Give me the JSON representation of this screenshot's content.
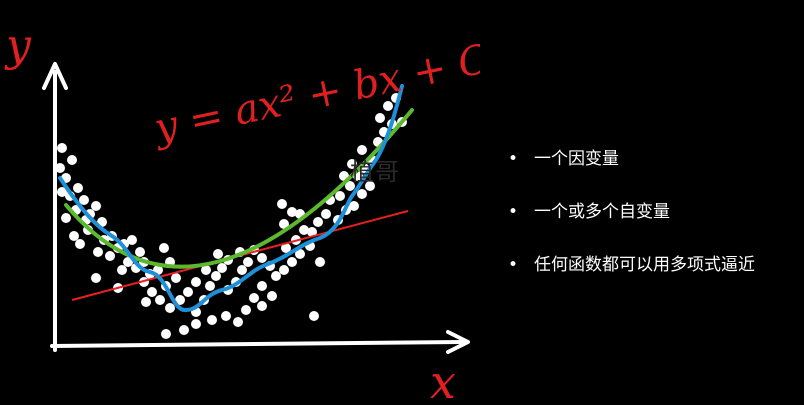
{
  "diagram": {
    "y_axis_label": "y",
    "x_axis_label": "x",
    "equation": "y = ax² + bx + C",
    "colors": {
      "background": "#000000",
      "axes": "#ffffff",
      "points": "#ffffff",
      "linear_fit": "#e82020",
      "quadratic_fit": "#5cb82c",
      "wiggly_fit": "#1e90d8",
      "handwriting": "#e02020"
    }
  },
  "watermark": "植哥",
  "bullets": [
    {
      "bullet": "•",
      "text": "一个因变量"
    },
    {
      "bullet": "•",
      "text": "一个或多个自变量"
    },
    {
      "bullet": "•",
      "text": "任何函数都可以用多项式逼近"
    }
  ]
}
